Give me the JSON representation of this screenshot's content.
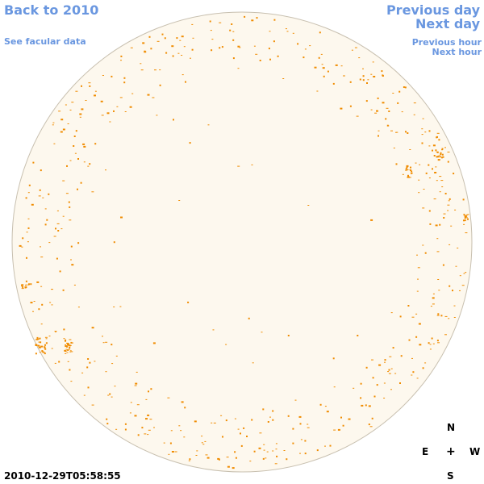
{
  "nav": {
    "back": "Back to 2010",
    "facular": "See facular data",
    "prev_day": "Previous day",
    "next_day": "Next day",
    "prev_hour": "Previous hour",
    "next_hour": "Next hour"
  },
  "compass": {
    "n": "N",
    "e": "E",
    "center": "+",
    "w": "W",
    "s": "S"
  },
  "timestamp": "2010-12-29T05:58:55",
  "colors": {
    "disk_fill": "#fdf8ee",
    "disk_edge": "#c8c0b0",
    "features": "#f08c00",
    "link": "#6a97e0"
  }
}
